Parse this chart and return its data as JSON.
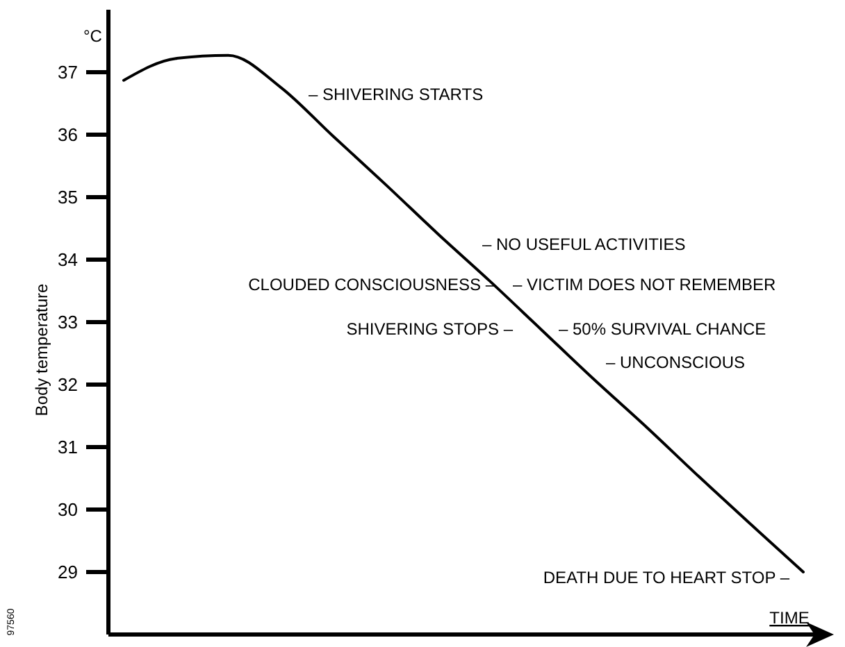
{
  "chart_data": {
    "type": "line",
    "xlabel": "TIME",
    "ylabel": "Body temperature",
    "categories": [
      null,
      null,
      null,
      null,
      null,
      null,
      null,
      null,
      null,
      null,
      null,
      null,
      null,
      null
    ],
    "series": [
      {
        "color": "#000000",
        "values": [
          36.87,
          37.22,
          37.27,
          36.76,
          35.98,
          35.21,
          34.42,
          33.66,
          32.87,
          32.08,
          31.32,
          30.53,
          29.76,
          29.0
        ]
      }
    ],
    "ylim": [
      28,
      38
    ],
    "yticks": [
      29,
      30,
      31,
      32,
      33,
      34,
      35,
      36,
      37
    ],
    "grid": false,
    "marker": "none",
    "line_style": "solid",
    "annotations": [
      "°C",
      "– SHIVERING STARTS",
      "– NO USEFUL ACTIVITIES",
      "CLOUDED CONSCIOUSNESS –",
      "– VICTIM DOES NOT REMEMBER",
      "SHIVERING STOPS –",
      "– 50% SURVIVAL CHANCE",
      "– UNCONSCIOUS",
      "DEATH DUE TO HEART STOP –",
      "97560"
    ]
  }
}
